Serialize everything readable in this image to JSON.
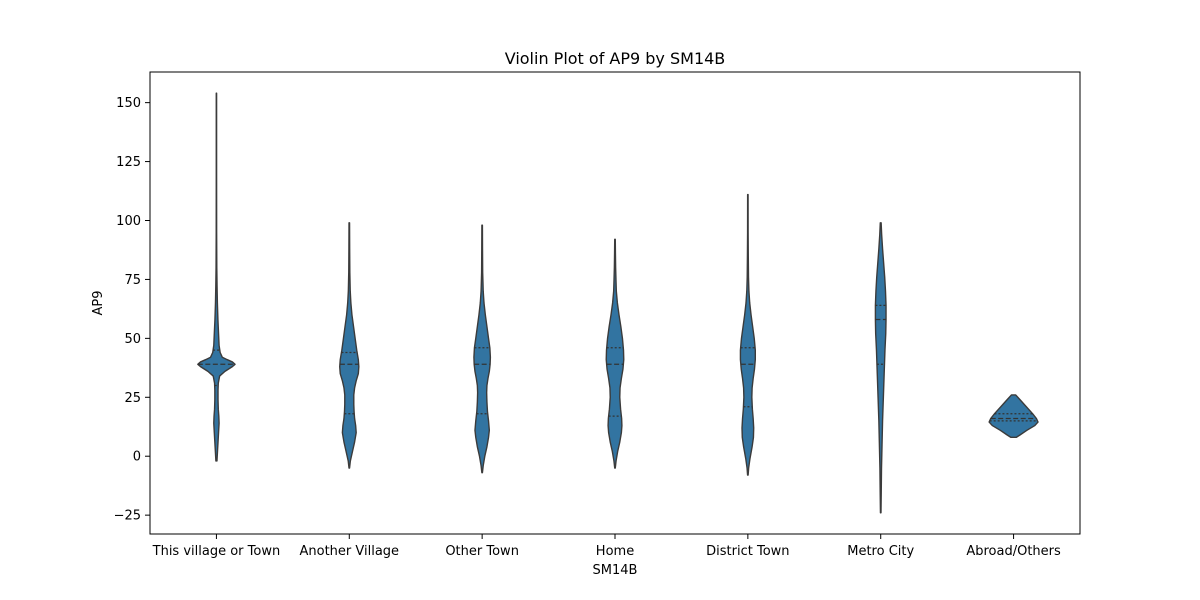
{
  "chart_data": {
    "type": "violin",
    "title": "Violin Plot of AP9 by SM14B",
    "xlabel": "SM14B",
    "ylabel": "AP9",
    "ylim": [
      -33,
      163
    ],
    "yticks": [
      -25,
      0,
      25,
      50,
      75,
      100,
      125,
      150
    ],
    "ytick_labels": [
      "−25",
      "0",
      "25",
      "50",
      "75",
      "100",
      "125",
      "150"
    ],
    "fill_color": "#3274a1",
    "edge_color": "#3b3b3b",
    "grid": false,
    "categories": [
      "This village or Town",
      "Another Village",
      "Other Town",
      "Home",
      "District Town",
      "Metro City",
      "Abroad/Others"
    ],
    "violins": [
      {
        "category": "This village or Town",
        "min": -2,
        "max": 154,
        "q1": 30,
        "median": 39,
        "q3": 45,
        "profile": [
          [
            -2,
            0.01
          ],
          [
            2,
            0.02
          ],
          [
            6,
            0.03
          ],
          [
            10,
            0.04
          ],
          [
            14,
            0.05
          ],
          [
            17,
            0.045
          ],
          [
            20,
            0.035
          ],
          [
            24,
            0.03
          ],
          [
            28,
            0.03
          ],
          [
            31,
            0.035
          ],
          [
            34,
            0.06
          ],
          [
            36,
            0.16
          ],
          [
            38,
            0.3
          ],
          [
            39,
            0.35
          ],
          [
            40,
            0.3
          ],
          [
            41,
            0.2
          ],
          [
            42,
            0.11
          ],
          [
            44,
            0.07
          ],
          [
            47,
            0.05
          ],
          [
            52,
            0.04
          ],
          [
            58,
            0.028
          ],
          [
            65,
            0.018
          ],
          [
            72,
            0.012
          ],
          [
            80,
            0.007
          ],
          [
            95,
            0.004
          ],
          [
            120,
            0.003
          ],
          [
            154,
            0.003
          ]
        ]
      },
      {
        "category": "Another Village",
        "min": -5,
        "max": 99,
        "q1": 18,
        "median": 39,
        "q3": 44,
        "profile": [
          [
            -5,
            0.005
          ],
          [
            -2,
            0.02
          ],
          [
            2,
            0.06
          ],
          [
            6,
            0.1
          ],
          [
            10,
            0.13
          ],
          [
            13,
            0.12
          ],
          [
            16,
            0.1
          ],
          [
            19,
            0.09
          ],
          [
            22,
            0.085
          ],
          [
            26,
            0.085
          ],
          [
            29,
            0.1
          ],
          [
            32,
            0.13
          ],
          [
            35,
            0.17
          ],
          [
            38,
            0.18
          ],
          [
            41,
            0.17
          ],
          [
            45,
            0.14
          ],
          [
            50,
            0.11
          ],
          [
            55,
            0.08
          ],
          [
            60,
            0.05
          ],
          [
            65,
            0.03
          ],
          [
            70,
            0.018
          ],
          [
            78,
            0.01
          ],
          [
            88,
            0.007
          ],
          [
            99,
            0.005
          ]
        ]
      },
      {
        "category": "Other Town",
        "min": -7,
        "max": 98,
        "q1": 18,
        "median": 39,
        "q3": 46,
        "profile": [
          [
            -7,
            0.005
          ],
          [
            -4,
            0.02
          ],
          [
            0,
            0.05
          ],
          [
            4,
            0.09
          ],
          [
            8,
            0.12
          ],
          [
            11,
            0.135
          ],
          [
            15,
            0.12
          ],
          [
            19,
            0.1
          ],
          [
            23,
            0.09
          ],
          [
            27,
            0.085
          ],
          [
            30,
            0.09
          ],
          [
            33,
            0.11
          ],
          [
            36,
            0.135
          ],
          [
            39,
            0.15
          ],
          [
            42,
            0.155
          ],
          [
            46,
            0.145
          ],
          [
            50,
            0.12
          ],
          [
            55,
            0.09
          ],
          [
            60,
            0.06
          ],
          [
            65,
            0.035
          ],
          [
            70,
            0.02
          ],
          [
            78,
            0.01
          ],
          [
            88,
            0.007
          ],
          [
            98,
            0.005
          ]
        ]
      },
      {
        "category": "Home",
        "min": -5,
        "max": 92,
        "q1": 17,
        "median": 39,
        "q3": 46,
        "profile": [
          [
            -5,
            0.005
          ],
          [
            -2,
            0.02
          ],
          [
            2,
            0.05
          ],
          [
            6,
            0.09
          ],
          [
            10,
            0.12
          ],
          [
            13,
            0.13
          ],
          [
            16,
            0.125
          ],
          [
            20,
            0.105
          ],
          [
            25,
            0.09
          ],
          [
            29,
            0.095
          ],
          [
            33,
            0.12
          ],
          [
            37,
            0.15
          ],
          [
            41,
            0.165
          ],
          [
            45,
            0.16
          ],
          [
            50,
            0.14
          ],
          [
            55,
            0.11
          ],
          [
            60,
            0.075
          ],
          [
            65,
            0.045
          ],
          [
            70,
            0.025
          ],
          [
            75,
            0.018
          ],
          [
            80,
            0.012
          ],
          [
            86,
            0.008
          ],
          [
            92,
            0.005
          ]
        ]
      },
      {
        "category": "District Town",
        "min": -8,
        "max": 111,
        "q1": 21,
        "median": 39,
        "q3": 46,
        "profile": [
          [
            -8,
            0.005
          ],
          [
            -5,
            0.015
          ],
          [
            -1,
            0.04
          ],
          [
            4,
            0.08
          ],
          [
            8,
            0.105
          ],
          [
            12,
            0.11
          ],
          [
            16,
            0.1
          ],
          [
            20,
            0.085
          ],
          [
            25,
            0.075
          ],
          [
            29,
            0.08
          ],
          [
            33,
            0.1
          ],
          [
            37,
            0.125
          ],
          [
            41,
            0.14
          ],
          [
            45,
            0.14
          ],
          [
            50,
            0.12
          ],
          [
            55,
            0.09
          ],
          [
            60,
            0.06
          ],
          [
            65,
            0.035
          ],
          [
            70,
            0.02
          ],
          [
            76,
            0.012
          ],
          [
            85,
            0.008
          ],
          [
            95,
            0.005
          ],
          [
            111,
            0.004
          ]
        ]
      },
      {
        "category": "Metro City",
        "min": -24,
        "max": 99,
        "q1": 39,
        "median": 58,
        "q3": 64,
        "profile": [
          [
            -24,
            0.005
          ],
          [
            -15,
            0.01
          ],
          [
            -5,
            0.015
          ],
          [
            5,
            0.025
          ],
          [
            15,
            0.035
          ],
          [
            25,
            0.05
          ],
          [
            35,
            0.065
          ],
          [
            45,
            0.08
          ],
          [
            52,
            0.095
          ],
          [
            58,
            0.1
          ],
          [
            64,
            0.1
          ],
          [
            70,
            0.09
          ],
          [
            76,
            0.075
          ],
          [
            82,
            0.055
          ],
          [
            88,
            0.035
          ],
          [
            94,
            0.018
          ],
          [
            99,
            0.008
          ]
        ]
      },
      {
        "category": "Abroad/Others",
        "min": 8,
        "max": 26,
        "q1": 15,
        "median": 16,
        "q3": 18,
        "profile": [
          [
            8,
            0.05
          ],
          [
            9,
            0.12
          ],
          [
            11,
            0.25
          ],
          [
            13,
            0.4
          ],
          [
            14.5,
            0.46
          ],
          [
            16,
            0.43
          ],
          [
            18,
            0.36
          ],
          [
            20,
            0.28
          ],
          [
            22,
            0.2
          ],
          [
            24,
            0.12
          ],
          [
            26,
            0.04
          ]
        ]
      }
    ]
  }
}
